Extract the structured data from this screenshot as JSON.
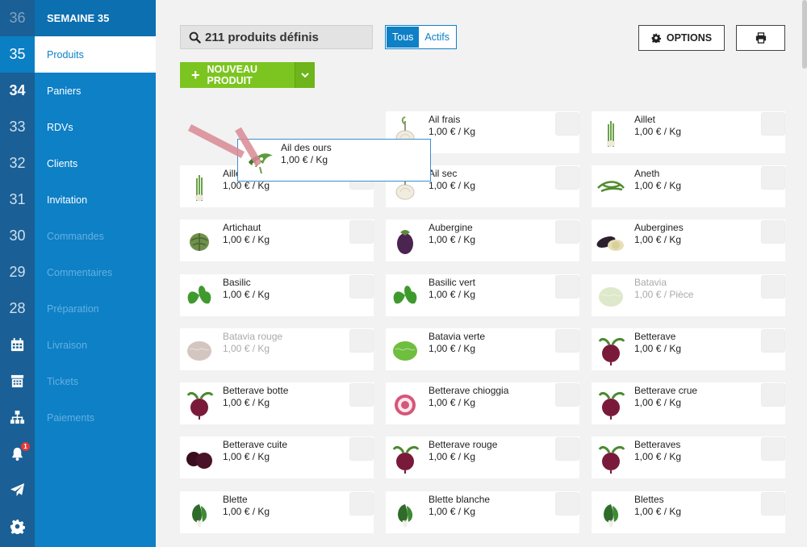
{
  "weeks": [
    "36",
    "35",
    "34",
    "33",
    "32",
    "31",
    "30",
    "29",
    "28"
  ],
  "week_state": [
    "dim",
    "selected",
    "bold",
    "normal",
    "normal",
    "normal",
    "normal",
    "normal",
    "normal"
  ],
  "rail_icons": [
    "calendar-icon",
    "store-icon",
    "sitemap-icon",
    "bell-icon",
    "paper-plane-icon",
    "gear-icon"
  ],
  "notification_count": "1",
  "menu": {
    "header": "SEMAINE 35",
    "items": [
      "Produits",
      "Paniers",
      "RDVs",
      "Clients",
      "Invitation",
      "Commandes",
      "Commentaires",
      "Préparation",
      "Livraison",
      "Tickets",
      "Paiements"
    ]
  },
  "toolbar": {
    "search_text": "211 produits définis",
    "filter_all": "Tous",
    "filter_active": "Actifs",
    "options_label": "OPTIONS",
    "new_product_label": "NOUVEAU PRODUIT"
  },
  "drag_ghost": {
    "name": "Ail des ours",
    "price": "1,00 € / Kg",
    "image": "wild-garlic"
  },
  "products": [
    {
      "name": "",
      "price": "",
      "image": "",
      "active": true
    },
    {
      "name": "Ail frais",
      "price": "1,00 € / Kg",
      "image": "garlic-fresh",
      "active": true
    },
    {
      "name": "Aillet",
      "price": "1,00 € / Kg",
      "image": "green-garlic",
      "active": true
    },
    {
      "name": "Aillet",
      "price": "1,00 € / Kg",
      "image": "green-garlic-2",
      "active": true
    },
    {
      "name": "Ail sec",
      "price": "1,00 € / Kg",
      "image": "garlic-dry",
      "active": true
    },
    {
      "name": "Aneth",
      "price": "1,00 € / Kg",
      "image": "dill",
      "active": true
    },
    {
      "name": "Artichaut",
      "price": "1,00 € / Kg",
      "image": "artichoke",
      "active": true
    },
    {
      "name": "Aubergine",
      "price": "1,00 € / Kg",
      "image": "eggplant",
      "active": true
    },
    {
      "name": "Aubergines",
      "price": "1,00 € / Kg",
      "image": "eggplants",
      "active": true
    },
    {
      "name": "Basilic",
      "price": "1,00 € / Kg",
      "image": "basil",
      "active": true
    },
    {
      "name": "Basilic vert",
      "price": "1,00 € / Kg",
      "image": "basil-green",
      "active": true
    },
    {
      "name": "Batavia",
      "price": "1,00 € / Pièce",
      "image": "batavia",
      "active": false
    },
    {
      "name": "Batavia rouge",
      "price": "1,00 € / Kg",
      "image": "batavia-red",
      "active": false
    },
    {
      "name": "Batavia verte",
      "price": "1,00 € / Kg",
      "image": "batavia-green",
      "active": true
    },
    {
      "name": "Betterave",
      "price": "1,00 € / Kg",
      "image": "beet",
      "active": true
    },
    {
      "name": "Betterave botte",
      "price": "1,00 € / Kg",
      "image": "beet-bunch",
      "active": true
    },
    {
      "name": "Betterave chioggia",
      "price": "1,00 € / Kg",
      "image": "beet-chioggia",
      "active": true
    },
    {
      "name": "Betterave crue",
      "price": "1,00 € / Kg",
      "image": "beet-raw",
      "active": true
    },
    {
      "name": "Betterave cuite",
      "price": "1,00 € / Kg",
      "image": "beet-cooked",
      "active": true
    },
    {
      "name": "Betterave rouge",
      "price": "1,00 € / Kg",
      "image": "beet-red",
      "active": true
    },
    {
      "name": "Betteraves",
      "price": "1,00 € / Kg",
      "image": "beets",
      "active": true
    },
    {
      "name": "Blette",
      "price": "1,00 € / Kg",
      "image": "chard",
      "active": true
    },
    {
      "name": "Blette blanche",
      "price": "1,00 € / Kg",
      "image": "chard-white",
      "active": true
    },
    {
      "name": "Blettes",
      "price": "1,00 € / Kg",
      "image": "chards",
      "active": true
    }
  ]
}
